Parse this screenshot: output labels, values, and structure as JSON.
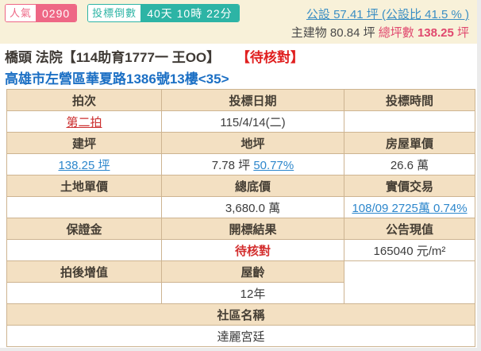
{
  "colors": {
    "pink": "#ee6785",
    "teal": "#2db4a5",
    "rose_text": "#e0486e",
    "link_blue": "#2d87cc",
    "address_blue": "#1b6fc4",
    "alert_red": "#e01f1f",
    "header_cell_bg": "#f3e0c2",
    "topbar_bg": "#f8f1d9"
  },
  "topbar": {
    "popularity": {
      "label": "人氣",
      "value": "0290"
    },
    "countdown": {
      "label": "投標倒數",
      "value": "40天 10時 22分"
    },
    "common_area_link": "公設 57.41 坪 (公設比 41.5 % )",
    "main_building_text": "主建物 80.84 坪",
    "total_label": "總坪數 ",
    "total_value": "138.25",
    "total_unit": " 坪"
  },
  "header": {
    "title_main": "橋頭 法院【114助育1777一 王OO】",
    "title_status": "【待核對】",
    "address": "高雄市左營區華夏路1386號13樓<35>"
  },
  "table": {
    "headers": {
      "round": "拍次",
      "bid_date": "投標日期",
      "bid_time": "投標時間",
      "building_area": "建坪",
      "land_area": "地坪",
      "house_unit_price": "房屋單價",
      "land_unit_price": "土地單價",
      "total_base_price": "總底價",
      "actual_price": "實價交易",
      "deposit": "保證金",
      "bid_result": "開標結果",
      "announced_value": "公告現值",
      "post_auction_gain": "拍後增值",
      "house_age": "屋齡",
      "community_name": "社區名稱"
    },
    "values": {
      "round": "第二拍",
      "bid_date": "115/4/14(二)",
      "bid_time": "",
      "building_area": "138.25 坪",
      "land_area_text": "7.78 坪 ",
      "land_area_link": "50.77%",
      "house_unit_price": "26.6 萬",
      "land_unit_price": "",
      "total_base_price": "3,680.0 萬",
      "actual_price_link": "108/09 2725萬 0.74%",
      "deposit": "",
      "bid_result": "待核對",
      "announced_value": "165040 元/m²",
      "post_auction_gain": "",
      "house_age": "12年",
      "community_name": "達麗宮廷"
    }
  }
}
